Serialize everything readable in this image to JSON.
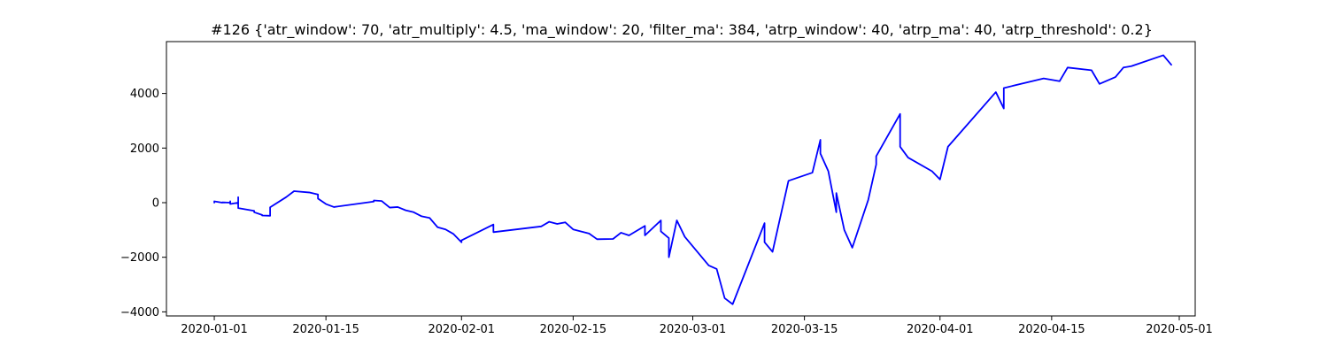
{
  "chart_data": {
    "type": "line",
    "title": "#126 {'atr_window': 70, 'atr_multiply': 4.5, 'ma_window': 20, 'filter_ma': 384, 'atrp_window': 40, 'atrp_ma': 40, 'atrp_threshold': 0.2}",
    "xlabel": "",
    "ylabel": "",
    "xlim": [
      "2019-12-26",
      "2020-05-03"
    ],
    "ylim": [
      -4150,
      5900
    ],
    "grid": false,
    "legend": "none",
    "x_ticks": [
      "2020-01-01",
      "2020-01-15",
      "2020-02-01",
      "2020-02-15",
      "2020-03-01",
      "2020-03-15",
      "2020-04-01",
      "2020-04-15",
      "2020-05-01"
    ],
    "y_ticks": [
      -4000,
      -2000,
      0,
      2000,
      4000
    ],
    "series": [
      {
        "color": "#0000ff",
        "points": [
          [
            "2020-01-01",
            0
          ],
          [
            "2020-01-01",
            50
          ],
          [
            "2020-01-02",
            0
          ],
          [
            "2020-01-02",
            10
          ],
          [
            "2020-01-03",
            0
          ],
          [
            "2020-01-03",
            -50
          ],
          [
            "2020-01-03",
            50
          ],
          [
            "2020-01-03",
            -50
          ],
          [
            "2020-01-04",
            0
          ],
          [
            "2020-01-04",
            -50
          ],
          [
            "2020-01-04",
            200
          ],
          [
            "2020-01-04",
            100
          ],
          [
            "2020-01-04",
            0
          ],
          [
            "2020-01-04",
            -200
          ],
          [
            "2020-01-06",
            -300
          ],
          [
            "2020-01-06",
            -350
          ],
          [
            "2020-01-07",
            -450
          ],
          [
            "2020-01-07",
            -470
          ],
          [
            "2020-01-08",
            -480
          ],
          [
            "2020-01-08",
            -170
          ],
          [
            "2020-01-10",
            200
          ],
          [
            "2020-01-11",
            420
          ],
          [
            "2020-01-13",
            370
          ],
          [
            "2020-01-14",
            300
          ],
          [
            "2020-01-14",
            150
          ],
          [
            "2020-01-15",
            -50
          ],
          [
            "2020-01-16",
            -160
          ],
          [
            "2020-01-21",
            40
          ],
          [
            "2020-01-21",
            80
          ],
          [
            "2020-01-22",
            60
          ],
          [
            "2020-01-23",
            -180
          ],
          [
            "2020-01-24",
            -160
          ],
          [
            "2020-01-25",
            -280
          ],
          [
            "2020-01-26",
            -350
          ],
          [
            "2020-01-27",
            -500
          ],
          [
            "2020-01-28",
            -560
          ],
          [
            "2020-01-29",
            -900
          ],
          [
            "2020-01-30",
            -980
          ],
          [
            "2020-01-31",
            -1150
          ],
          [
            "2020-02-01",
            -1450
          ],
          [
            "2020-02-01",
            -1380
          ],
          [
            "2020-02-05",
            -800
          ],
          [
            "2020-02-05",
            -1080
          ],
          [
            "2020-02-11",
            -870
          ],
          [
            "2020-02-12",
            -700
          ],
          [
            "2020-02-13",
            -780
          ],
          [
            "2020-02-14",
            -720
          ],
          [
            "2020-02-15",
            -980
          ],
          [
            "2020-02-17",
            -1130
          ],
          [
            "2020-02-18",
            -1340
          ],
          [
            "2020-02-20",
            -1330
          ],
          [
            "2020-02-21",
            -1100
          ],
          [
            "2020-02-22",
            -1200
          ],
          [
            "2020-02-24",
            -850
          ],
          [
            "2020-02-24",
            -1200
          ],
          [
            "2020-02-26",
            -650
          ],
          [
            "2020-02-26",
            -1050
          ],
          [
            "2020-02-27",
            -1300
          ],
          [
            "2020-02-27",
            -2000
          ],
          [
            "2020-02-28",
            -650
          ],
          [
            "2020-02-29",
            -1250
          ],
          [
            "2020-03-03",
            -2300
          ],
          [
            "2020-03-04",
            -2430
          ],
          [
            "2020-03-05",
            -3500
          ],
          [
            "2020-03-06",
            -3720
          ],
          [
            "2020-03-10",
            -750
          ],
          [
            "2020-03-10",
            -1450
          ],
          [
            "2020-03-11",
            -1800
          ],
          [
            "2020-03-13",
            800
          ],
          [
            "2020-03-16",
            1100
          ],
          [
            "2020-03-17",
            2300
          ],
          [
            "2020-03-17",
            1800
          ],
          [
            "2020-03-18",
            1150
          ],
          [
            "2020-03-19",
            -350
          ],
          [
            "2020-03-19",
            350
          ],
          [
            "2020-03-20",
            -1000
          ],
          [
            "2020-03-21",
            -1650
          ],
          [
            "2020-03-23",
            100
          ],
          [
            "2020-03-24",
            1400
          ],
          [
            "2020-03-24",
            1700
          ],
          [
            "2020-03-27",
            3250
          ],
          [
            "2020-03-27",
            2050
          ],
          [
            "2020-03-28",
            1650
          ],
          [
            "2020-03-31",
            1150
          ],
          [
            "2020-04-01",
            850
          ],
          [
            "2020-04-02",
            2050
          ],
          [
            "2020-04-08",
            4050
          ],
          [
            "2020-04-09",
            3450
          ],
          [
            "2020-04-09",
            4200
          ],
          [
            "2020-04-14",
            4550
          ],
          [
            "2020-04-16",
            4450
          ],
          [
            "2020-04-17",
            4950
          ],
          [
            "2020-04-20",
            4850
          ],
          [
            "2020-04-21",
            4350
          ],
          [
            "2020-04-23",
            4600
          ],
          [
            "2020-04-24",
            4950
          ],
          [
            "2020-04-25",
            5000
          ],
          [
            "2020-04-29",
            5400
          ],
          [
            "2020-04-30",
            5050
          ]
        ]
      }
    ]
  }
}
